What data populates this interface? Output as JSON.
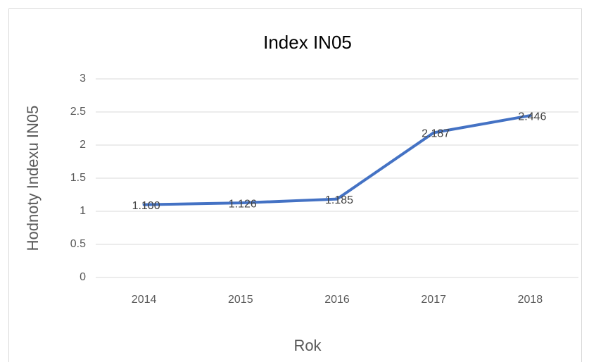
{
  "chart_data": {
    "type": "line",
    "title": "Index IN05",
    "x_label": "Rok",
    "y_label": "Hodnoty Indexu IN05",
    "categories": [
      "2014",
      "2015",
      "2016",
      "2017",
      "2018"
    ],
    "values": [
      1.1,
      1.126,
      1.185,
      2.187,
      2.446
    ],
    "value_labels": [
      "1.100",
      "1.126",
      "1.185",
      "2.187",
      "2.446"
    ],
    "color": "#4472c4",
    "ylim": [
      0,
      3
    ],
    "yticks": [
      0,
      0.5,
      1,
      1.5,
      2,
      2.5,
      3
    ],
    "grid": true
  }
}
